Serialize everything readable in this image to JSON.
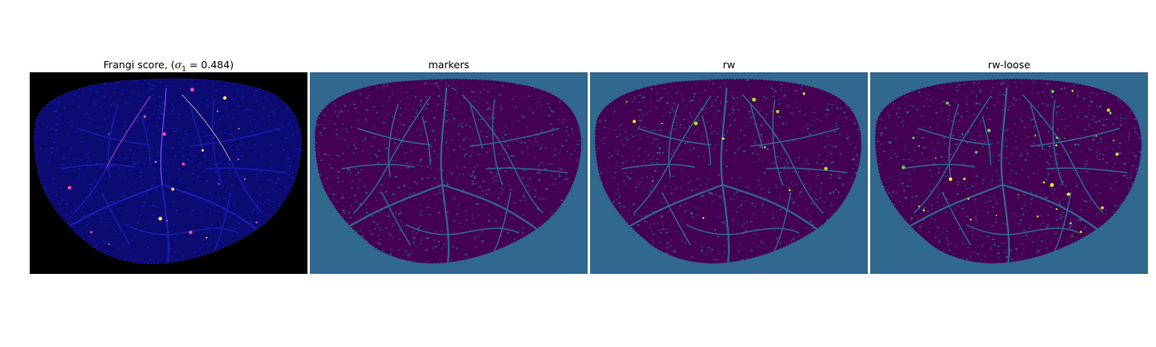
{
  "figure": {
    "panels": [
      {
        "id": "frangi",
        "title_prefix": "Frangi score, (",
        "title_symbol": "σ",
        "title_subscript": "1",
        "title_suffix": " = 0.484)",
        "colormap": "gnuplot2",
        "background_color": "#000000",
        "blob_color": "#0b0b72",
        "vessel_color": "#1c1cb0",
        "highlight_colors": [
          "#ff4fa0",
          "#ffe27a",
          "#c060ff"
        ]
      },
      {
        "id": "markers",
        "title": "markers",
        "colormap": "viridis",
        "background_color": "#31688e",
        "blob_color": "#440154",
        "vessel_color": "#31688e"
      },
      {
        "id": "rw",
        "title": "rw",
        "colormap": "viridis",
        "background_color": "#31688e",
        "blob_color": "#440154",
        "vessel_color": "#31688e",
        "highlight_colors": [
          "#fde725",
          "#b5de2b"
        ]
      },
      {
        "id": "rw-loose",
        "title": "rw-loose",
        "colormap": "viridis",
        "background_color": "#31688e",
        "blob_color": "#440154",
        "vessel_color": "#31688e",
        "highlight_colors": [
          "#fde725",
          "#b5de2b",
          "#6ece58"
        ]
      }
    ]
  }
}
